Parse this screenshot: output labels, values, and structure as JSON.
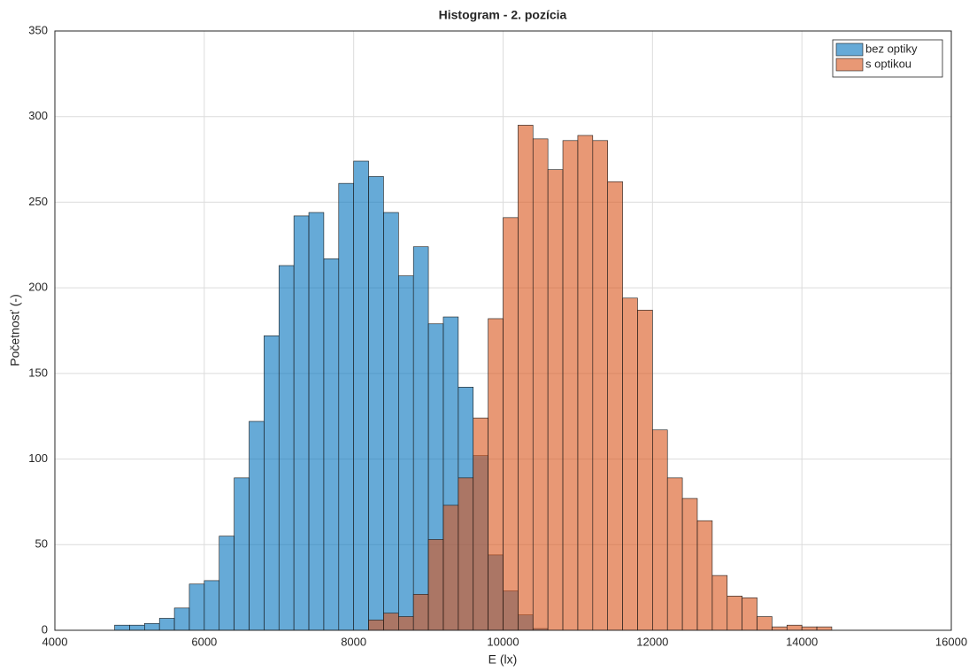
{
  "chart_data": {
    "type": "histogram",
    "title": "Histogram - 2. pozícia",
    "x_label": "E (lx)",
    "y_label": "Početnosť (-)",
    "xlim": [
      4000,
      16000
    ],
    "xticks": [
      4000,
      6000,
      8000,
      10000,
      12000,
      14000,
      16000
    ],
    "ylim": [
      0,
      350
    ],
    "yticks": [
      0,
      50,
      100,
      150,
      200,
      250,
      300,
      350
    ],
    "grid": true,
    "legend": "top-right",
    "series": [
      {
        "name": "bez optiky",
        "color": "#0072bd",
        "bins": [
          4800,
          5000,
          5200,
          5400,
          5600,
          5800,
          6000,
          6200,
          6400,
          6600,
          6800,
          7000,
          7200,
          7400,
          7600,
          7800,
          8000,
          8200,
          8400,
          8600,
          8800,
          9000,
          9200,
          9400,
          9600,
          9800,
          10000,
          10200,
          10400,
          10600
        ],
        "values": [
          3,
          3,
          4,
          7,
          13,
          27,
          29,
          55,
          89,
          122,
          172,
          213,
          242,
          244,
          217,
          261,
          274,
          265,
          244,
          207,
          224,
          179,
          183,
          142,
          102,
          44,
          23,
          9,
          1
        ]
      },
      {
        "name": "s optikou",
        "color": "#d95319",
        "bins": [
          8200,
          8400,
          8600,
          8800,
          9000,
          9200,
          9400,
          9600,
          9800,
          10000,
          10200,
          10400,
          10600,
          10800,
          11000,
          11200,
          11400,
          11600,
          11800,
          12000,
          12200,
          12400,
          12600,
          12800,
          13000,
          13200,
          13400,
          13600,
          13800,
          14000,
          14200,
          14400
        ],
        "values": [
          6,
          10,
          8,
          21,
          53,
          73,
          89,
          124,
          182,
          241,
          295,
          287,
          269,
          286,
          289,
          286,
          262,
          194,
          187,
          117,
          89,
          77,
          64,
          32,
          20,
          19,
          8,
          2,
          3,
          2,
          2
        ]
      }
    ]
  }
}
